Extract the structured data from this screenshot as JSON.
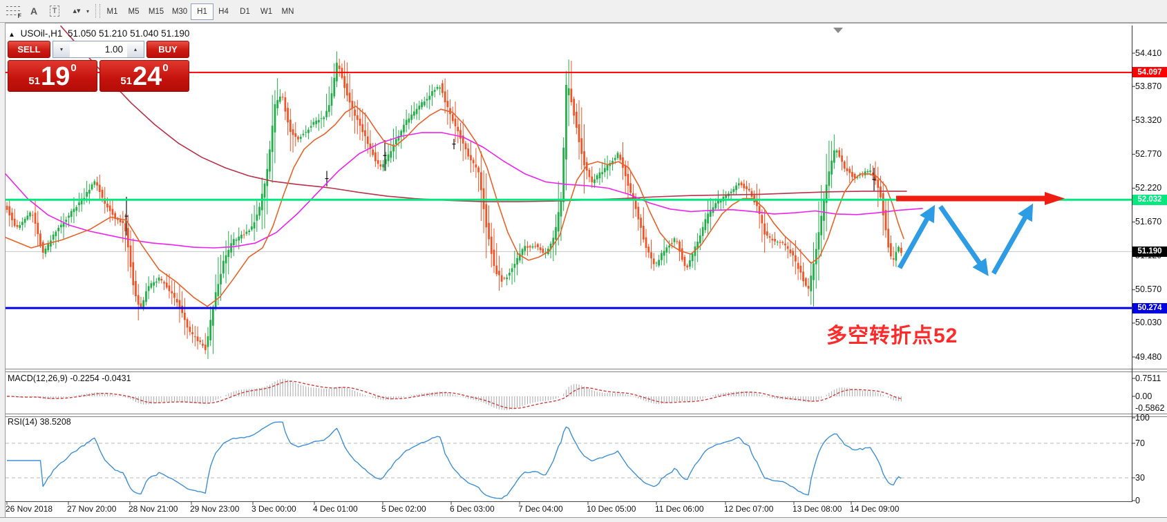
{
  "toolbar": {
    "tools": [
      {
        "name": "fibonacci",
        "glyph": "F"
      },
      {
        "name": "text",
        "glyph": "A"
      },
      {
        "name": "label",
        "glyph": "T"
      },
      {
        "name": "arrows",
        "glyph": "▴▾"
      }
    ],
    "timeframes": [
      {
        "label": "M1",
        "active": false
      },
      {
        "label": "M5",
        "active": false
      },
      {
        "label": "M15",
        "active": false
      },
      {
        "label": "M30",
        "active": false
      },
      {
        "label": "H1",
        "active": true
      },
      {
        "label": "H4",
        "active": false
      },
      {
        "label": "D1",
        "active": false
      },
      {
        "label": "W1",
        "active": false
      },
      {
        "label": "MN",
        "active": false
      }
    ]
  },
  "header": {
    "symbol": "USOil-,H1",
    "open": "51.050",
    "high": "51.210",
    "low": "51.040",
    "close": "51.190",
    "collapse_icon": "▲"
  },
  "trade_panel": {
    "sell_label": "SELL",
    "buy_label": "BUY",
    "volume": "1.00",
    "sell_small": "51",
    "sell_big": "19",
    "sell_sup": "0",
    "buy_small": "51",
    "buy_big": "24",
    "buy_sup": "0"
  },
  "annotation": {
    "text": "多空转折点52",
    "color": "#ff2a2a"
  },
  "colors": {
    "bull": "#1fae45",
    "bear": "#f15123",
    "doji": "#111111",
    "ma_fast": "#e8622a",
    "ma_slow": "#b93249",
    "ma_magenta": "#ee22ee",
    "level_red": "#ff0000",
    "level_green": "#00e87e",
    "level_blue": "#0000e0",
    "bid_line": "#c6c6c6",
    "badge_black": "#000000",
    "macd_bar": "#a9a9a9",
    "macd_signal": "#d23b3b",
    "rsi_line": "#3e8fd6",
    "arrow_red": "#f01e12",
    "arrow_blue": "#2d9ce4"
  },
  "chart_data": {
    "type": "candlestick",
    "symbol": "USOil",
    "timeframe": "H1",
    "price_axis": {
      "ticks": [
        "54.410",
        "53.870",
        "53.320",
        "52.770",
        "52.220",
        "51.670",
        "51.120",
        "50.570",
        "50.030",
        "49.480"
      ],
      "tick_values": [
        54.41,
        53.87,
        53.32,
        52.77,
        52.22,
        51.67,
        51.12,
        50.57,
        50.03,
        49.48
      ]
    },
    "levels": [
      {
        "name": "resistance",
        "price": 54.097,
        "label": "54.097",
        "colorKey": "level_red",
        "width": 2
      },
      {
        "name": "pivot",
        "price": 52.032,
        "label": "52.032",
        "colorKey": "level_green",
        "width": 3
      },
      {
        "name": "support",
        "price": 50.274,
        "label": "50.274",
        "colorKey": "level_blue",
        "width": 3
      }
    ],
    "bid": {
      "price": 51.19,
      "label": "51.190"
    },
    "time_axis": {
      "labels": [
        "26 Nov 2018",
        "27 Nov 20:00",
        "28 Nov 21:00",
        "29 Nov 23:00",
        "3 Dec 00:00",
        "4 Dec 01:00",
        "5 Dec 02:00",
        "6 Dec 03:00",
        "7 Dec 04:00",
        "10 Dec 05:00",
        "11 Dec 06:00",
        "12 Dec 07:00",
        "13 Dec 08:00",
        "14 Dec 09:00"
      ],
      "x": [
        8,
        97,
        186,
        275,
        364,
        453,
        552,
        651,
        750,
        849,
        948,
        1048,
        1147,
        1230
      ]
    },
    "price_path": [
      [
        10,
        51.95
      ],
      [
        26,
        51.55
      ],
      [
        48,
        51.85
      ],
      [
        64,
        51.15
      ],
      [
        85,
        51.55
      ],
      [
        107,
        51.85
      ],
      [
        125,
        52.1
      ],
      [
        139,
        52.35
      ],
      [
        152,
        52.0
      ],
      [
        168,
        51.75
      ],
      [
        183,
        51.6
      ],
      [
        196,
        50.55
      ],
      [
        205,
        50.25
      ],
      [
        215,
        50.6
      ],
      [
        232,
        50.75
      ],
      [
        248,
        50.55
      ],
      [
        262,
        50.3
      ],
      [
        275,
        49.9
      ],
      [
        288,
        49.75
      ],
      [
        300,
        49.6
      ],
      [
        312,
        50.4
      ],
      [
        325,
        51.0
      ],
      [
        338,
        51.35
      ],
      [
        352,
        51.45
      ],
      [
        365,
        51.55
      ],
      [
        378,
        51.9
      ],
      [
        390,
        52.6
      ],
      [
        400,
        53.55
      ],
      [
        410,
        53.75
      ],
      [
        420,
        53.2
      ],
      [
        432,
        53.0
      ],
      [
        445,
        53.15
      ],
      [
        458,
        53.3
      ],
      [
        470,
        53.35
      ],
      [
        480,
        53.6
      ],
      [
        490,
        54.3
      ],
      [
        500,
        53.9
      ],
      [
        512,
        53.5
      ],
      [
        525,
        53.2
      ],
      [
        540,
        52.8
      ],
      [
        552,
        52.55
      ],
      [
        562,
        52.7
      ],
      [
        575,
        53.0
      ],
      [
        590,
        53.3
      ],
      [
        605,
        53.5
      ],
      [
        622,
        53.7
      ],
      [
        638,
        53.9
      ],
      [
        652,
        53.45
      ],
      [
        666,
        53.1
      ],
      [
        680,
        52.75
      ],
      [
        695,
        52.45
      ],
      [
        706,
        51.6
      ],
      [
        718,
        50.9
      ],
      [
        730,
        50.7
      ],
      [
        745,
        50.95
      ],
      [
        760,
        51.25
      ],
      [
        775,
        51.3
      ],
      [
        790,
        51.15
      ],
      [
        805,
        51.45
      ],
      [
        815,
        52.1
      ],
      [
        822,
        54.0
      ],
      [
        832,
        53.45
      ],
      [
        845,
        52.7
      ],
      [
        858,
        52.3
      ],
      [
        870,
        52.45
      ],
      [
        884,
        52.6
      ],
      [
        897,
        52.8
      ],
      [
        910,
        52.3
      ],
      [
        922,
        51.9
      ],
      [
        936,
        51.3
      ],
      [
        950,
        50.95
      ],
      [
        965,
        51.25
      ],
      [
        980,
        51.4
      ],
      [
        995,
        50.9
      ],
      [
        1010,
        51.3
      ],
      [
        1025,
        51.75
      ],
      [
        1040,
        52.0
      ],
      [
        1055,
        52.1
      ],
      [
        1070,
        52.3
      ],
      [
        1085,
        52.2
      ],
      [
        1098,
        51.9
      ],
      [
        1110,
        51.45
      ],
      [
        1124,
        51.35
      ],
      [
        1136,
        51.3
      ],
      [
        1148,
        51.15
      ],
      [
        1160,
        50.85
      ],
      [
        1172,
        50.55
      ],
      [
        1186,
        51.4
      ],
      [
        1200,
        52.4
      ],
      [
        1211,
        52.9
      ],
      [
        1224,
        52.55
      ],
      [
        1237,
        52.4
      ],
      [
        1251,
        52.45
      ],
      [
        1263,
        52.5
      ],
      [
        1275,
        52.2
      ],
      [
        1283,
        51.6
      ],
      [
        1290,
        51.1
      ],
      [
        1296,
        51.05
      ],
      [
        1301,
        51.3
      ],
      [
        1305,
        51.19
      ]
    ],
    "dojis": [
      [
        183,
        52.08,
        51.45
      ],
      [
        473,
        52.5,
        52.25
      ],
      [
        557,
        53.0,
        52.5
      ],
      [
        657,
        53.02,
        52.85
      ],
      [
        1265,
        52.55,
        52.17
      ]
    ],
    "ma_fast": [
      [
        8,
        51.42
      ],
      [
        45,
        51.25
      ],
      [
        90,
        51.38
      ],
      [
        130,
        51.55
      ],
      [
        160,
        51.75
      ],
      [
        183,
        51.7
      ],
      [
        205,
        51.3
      ],
      [
        230,
        50.9
      ],
      [
        255,
        50.7
      ],
      [
        280,
        50.45
      ],
      [
        300,
        50.3
      ],
      [
        318,
        50.45
      ],
      [
        338,
        50.75
      ],
      [
        360,
        51.1
      ],
      [
        380,
        51.25
      ],
      [
        395,
        51.6
      ],
      [
        410,
        52.1
      ],
      [
        425,
        52.55
      ],
      [
        440,
        52.85
      ],
      [
        455,
        53.0
      ],
      [
        470,
        53.1
      ],
      [
        485,
        53.25
      ],
      [
        500,
        53.45
      ],
      [
        515,
        53.55
      ],
      [
        530,
        53.4
      ],
      [
        545,
        53.15
      ],
      [
        558,
        52.95
      ],
      [
        572,
        52.9
      ],
      [
        588,
        53.05
      ],
      [
        605,
        53.25
      ],
      [
        622,
        53.4
      ],
      [
        638,
        53.5
      ],
      [
        655,
        53.45
      ],
      [
        672,
        53.25
      ],
      [
        690,
        52.95
      ],
      [
        705,
        52.55
      ],
      [
        720,
        52.0
      ],
      [
        735,
        51.5
      ],
      [
        750,
        51.15
      ],
      [
        765,
        51.05
      ],
      [
        780,
        51.1
      ],
      [
        795,
        51.2
      ],
      [
        810,
        51.45
      ],
      [
        822,
        51.9
      ],
      [
        835,
        52.35
      ],
      [
        850,
        52.6
      ],
      [
        865,
        52.65
      ],
      [
        880,
        52.6
      ],
      [
        895,
        52.65
      ],
      [
        910,
        52.55
      ],
      [
        925,
        52.25
      ],
      [
        940,
        51.85
      ],
      [
        955,
        51.5
      ],
      [
        970,
        51.3
      ],
      [
        985,
        51.2
      ],
      [
        1000,
        51.15
      ],
      [
        1015,
        51.3
      ],
      [
        1030,
        51.55
      ],
      [
        1045,
        51.8
      ],
      [
        1060,
        51.95
      ],
      [
        1075,
        52.05
      ],
      [
        1090,
        52.05
      ],
      [
        1105,
        51.9
      ],
      [
        1120,
        51.65
      ],
      [
        1135,
        51.45
      ],
      [
        1150,
        51.3
      ],
      [
        1162,
        51.15
      ],
      [
        1174,
        51.0
      ],
      [
        1186,
        51.1
      ],
      [
        1198,
        51.4
      ],
      [
        1210,
        51.8
      ],
      [
        1222,
        52.15
      ],
      [
        1234,
        52.35
      ],
      [
        1246,
        52.45
      ],
      [
        1258,
        52.45
      ],
      [
        1270,
        52.4
      ],
      [
        1282,
        52.25
      ],
      [
        1292,
        51.95
      ],
      [
        1300,
        51.65
      ],
      [
        1308,
        51.4
      ]
    ],
    "ma_slow": [
      [
        88,
        54.85
      ],
      [
        122,
        54.42
      ],
      [
        156,
        54.0
      ],
      [
        190,
        53.6
      ],
      [
        224,
        53.25
      ],
      [
        258,
        52.95
      ],
      [
        292,
        52.72
      ],
      [
        326,
        52.55
      ],
      [
        360,
        52.42
      ],
      [
        395,
        52.33
      ],
      [
        430,
        52.28
      ],
      [
        465,
        52.24
      ],
      [
        480,
        52.22
      ],
      [
        520,
        52.15
      ],
      [
        560,
        52.09
      ],
      [
        600,
        52.05
      ],
      [
        650,
        52.02
      ],
      [
        700,
        52.0
      ],
      [
        750,
        52.0
      ],
      [
        800,
        52.01
      ],
      [
        850,
        52.03
      ],
      [
        900,
        52.05
      ],
      [
        950,
        52.08
      ],
      [
        1000,
        52.1
      ],
      [
        1050,
        52.11
      ],
      [
        1100,
        52.12
      ],
      [
        1150,
        52.14
      ],
      [
        1200,
        52.16
      ],
      [
        1250,
        52.17
      ],
      [
        1312,
        52.17
      ]
    ],
    "ma_magenta": [
      [
        8,
        52.45
      ],
      [
        40,
        52.05
      ],
      [
        70,
        51.78
      ],
      [
        100,
        51.62
      ],
      [
        130,
        51.52
      ],
      [
        160,
        51.45
      ],
      [
        190,
        51.38
      ],
      [
        220,
        51.33
      ],
      [
        250,
        51.3
      ],
      [
        280,
        51.26
      ],
      [
        310,
        51.25
      ],
      [
        340,
        51.27
      ],
      [
        370,
        51.33
      ],
      [
        400,
        51.5
      ],
      [
        430,
        51.8
      ],
      [
        460,
        52.15
      ],
      [
        490,
        52.5
      ],
      [
        520,
        52.78
      ],
      [
        550,
        52.95
      ],
      [
        580,
        53.06
      ],
      [
        610,
        53.12
      ],
      [
        640,
        53.12
      ],
      [
        670,
        53.05
      ],
      [
        700,
        52.88
      ],
      [
        730,
        52.65
      ],
      [
        760,
        52.45
      ],
      [
        790,
        52.32
      ],
      [
        820,
        52.28
      ],
      [
        850,
        52.26
      ],
      [
        880,
        52.22
      ],
      [
        910,
        52.12
      ],
      [
        940,
        51.98
      ],
      [
        970,
        51.88
      ],
      [
        1000,
        51.84
      ],
      [
        1030,
        51.86
      ],
      [
        1060,
        51.87
      ],
      [
        1090,
        51.84
      ],
      [
        1120,
        51.8
      ],
      [
        1150,
        51.82
      ],
      [
        1180,
        51.85
      ],
      [
        1210,
        51.8
      ],
      [
        1240,
        51.79
      ],
      [
        1270,
        51.82
      ],
      [
        1300,
        51.86
      ],
      [
        1335,
        51.89
      ]
    ],
    "macd": {
      "title": "MACD(12,26,9)",
      "values": "-0.2254 -0.0431",
      "max": 0.7511,
      "min": -0.5862,
      "axis_labels": [
        "0.7511",
        "0.00",
        "-0.5862"
      ]
    },
    "rsi": {
      "title": "RSI(14)",
      "value": "38.5208",
      "axis_labels": [
        "100",
        "70",
        "30",
        "0"
      ],
      "axis_values": [
        100,
        70,
        30,
        0
      ],
      "guide_levels": [
        70,
        30
      ]
    }
  }
}
